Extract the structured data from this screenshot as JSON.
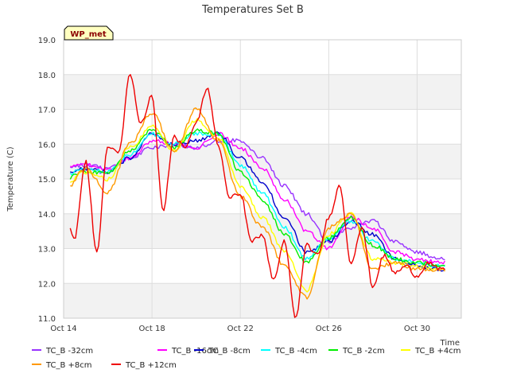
{
  "chart_data": {
    "type": "line",
    "title": "Temperatures Set B",
    "xlabel": "Time",
    "ylabel": "Temperature (C)",
    "annotation": "WP_met",
    "ylim": [
      11.0,
      19.0
    ],
    "yticks": [
      "11.0",
      "12.0",
      "13.0",
      "14.0",
      "15.0",
      "16.0",
      "17.0",
      "18.0",
      "19.0"
    ],
    "xlim": [
      "Oct 14",
      "Nov 1"
    ],
    "xticks": [
      "Oct 14",
      "Oct 18",
      "Oct 22",
      "Oct 26",
      "Oct 30"
    ],
    "grid": true,
    "legend_position": "bottom",
    "colors": {
      "band": "#f2f2f2",
      "grid": "#dddddd",
      "annotation_bg": "#ffffc0",
      "annotation_text": "#8b0000"
    },
    "series": [
      {
        "name": "TC_B -32cm",
        "color": "#9933ff",
        "x": [
          "Oct 14",
          "Oct 15",
          "Oct 16",
          "Oct 17",
          "Oct 18",
          "Oct 19",
          "Oct 20",
          "Oct 21",
          "Oct 22",
          "Oct 23",
          "Oct 24",
          "Oct 25",
          "Oct 26",
          "Oct 27",
          "Oct 28",
          "Oct 29",
          "Oct 30",
          "Oct 31"
        ],
        "y": [
          15.3,
          15.4,
          15.3,
          15.6,
          15.9,
          16.0,
          15.9,
          16.1,
          16.1,
          15.6,
          14.8,
          14.0,
          13.2,
          13.6,
          13.8,
          13.2,
          12.9,
          12.7
        ]
      },
      {
        "name": "TC_B -16cm",
        "color": "#ff00ff",
        "x": [
          "Oct 14",
          "Oct 15",
          "Oct 16",
          "Oct 17",
          "Oct 18",
          "Oct 19",
          "Oct 20",
          "Oct 21",
          "Oct 22",
          "Oct 23",
          "Oct 24",
          "Oct 25",
          "Oct 26",
          "Oct 27",
          "Oct 28",
          "Oct 29",
          "Oct 30",
          "Oct 31"
        ],
        "y": [
          15.3,
          15.4,
          15.3,
          15.6,
          16.1,
          16.0,
          15.9,
          16.3,
          15.9,
          15.3,
          14.4,
          13.5,
          13.0,
          13.9,
          13.6,
          12.9,
          12.7,
          12.6
        ]
      },
      {
        "name": "TC_B -8cm",
        "color": "#0000cc",
        "x": [
          "Oct 14",
          "Oct 15",
          "Oct 16",
          "Oct 17",
          "Oct 18",
          "Oct 19",
          "Oct 20",
          "Oct 21",
          "Oct 22",
          "Oct 23",
          "Oct 24",
          "Oct 25",
          "Oct 26",
          "Oct 27",
          "Oct 28",
          "Oct 29",
          "Oct 30",
          "Oct 31"
        ],
        "y": [
          15.1,
          15.3,
          15.2,
          15.6,
          16.3,
          16.0,
          16.1,
          16.3,
          15.6,
          14.9,
          13.9,
          12.9,
          13.2,
          13.8,
          13.4,
          12.7,
          12.5,
          12.4
        ]
      },
      {
        "name": "TC_B -4cm",
        "color": "#00ffff",
        "x": [
          "Oct 14",
          "Oct 15",
          "Oct 16",
          "Oct 17",
          "Oct 18",
          "Oct 19",
          "Oct 20",
          "Oct 21",
          "Oct 22",
          "Oct 23",
          "Oct 24",
          "Oct 25",
          "Oct 26",
          "Oct 27",
          "Oct 28",
          "Oct 29",
          "Oct 30",
          "Oct 31"
        ],
        "y": [
          15.1,
          15.3,
          15.2,
          15.7,
          16.3,
          16.0,
          16.3,
          16.3,
          15.4,
          14.6,
          13.6,
          12.7,
          13.3,
          13.8,
          13.2,
          12.7,
          12.6,
          12.5
        ]
      },
      {
        "name": "TC_B -2cm",
        "color": "#00ee00",
        "x": [
          "Oct 14",
          "Oct 15",
          "Oct 16",
          "Oct 17",
          "Oct 18",
          "Oct 19",
          "Oct 20",
          "Oct 21",
          "Oct 22",
          "Oct 23",
          "Oct 24",
          "Oct 25",
          "Oct 26",
          "Oct 27",
          "Oct 28",
          "Oct 29",
          "Oct 30",
          "Oct 31"
        ],
        "y": [
          15.0,
          15.2,
          15.2,
          15.8,
          16.4,
          15.9,
          16.4,
          16.3,
          15.2,
          14.4,
          13.4,
          12.6,
          13.3,
          13.9,
          13.1,
          12.7,
          12.6,
          12.5
        ]
      },
      {
        "name": "TC_B +4cm",
        "color": "#ffff00",
        "x": [
          "Oct 14",
          "Oct 15",
          "Oct 16",
          "Oct 17",
          "Oct 18",
          "Oct 19",
          "Oct 20",
          "Oct 21",
          "Oct 22",
          "Oct 23",
          "Oct 24",
          "Oct 25",
          "Oct 26",
          "Oct 27",
          "Oct 28",
          "Oct 29",
          "Oct 30",
          "Oct 31"
        ],
        "y": [
          14.8,
          15.2,
          15.0,
          15.9,
          16.5,
          15.8,
          16.7,
          16.2,
          14.8,
          13.9,
          12.9,
          11.8,
          13.4,
          14.0,
          12.7,
          12.6,
          12.5,
          12.4
        ]
      },
      {
        "name": "TC_B +8cm",
        "color": "#ff9900",
        "x": [
          "Oct 14",
          "Oct 15",
          "Oct 16",
          "Oct 17",
          "Oct 18",
          "Oct 19",
          "Oct 20",
          "Oct 21",
          "Oct 22",
          "Oct 23",
          "Oct 24",
          "Oct 25",
          "Oct 26",
          "Oct 27",
          "Oct 28",
          "Oct 29",
          "Oct 30",
          "Oct 31"
        ],
        "y": [
          14.6,
          15.3,
          14.6,
          16.0,
          16.9,
          15.8,
          17.0,
          16.1,
          14.5,
          13.6,
          12.5,
          11.6,
          13.6,
          14.0,
          12.4,
          12.6,
          12.4,
          12.4
        ]
      },
      {
        "name": "TC_B +12cm",
        "color": "#ee0000",
        "x": [
          "Oct 14",
          "Oct 14.5",
          "Oct 15",
          "Oct 15.5",
          "Oct 16",
          "Oct 16.5",
          "Oct 17",
          "Oct 17.5",
          "Oct 18",
          "Oct 18.5",
          "Oct 19",
          "Oct 19.5",
          "Oct 20",
          "Oct 20.5",
          "Oct 21",
          "Oct 21.5",
          "Oct 22",
          "Oct 22.5",
          "Oct 23",
          "Oct 23.5",
          "Oct 24",
          "Oct 24.5",
          "Oct 25",
          "Oct 25.5",
          "Oct 26",
          "Oct 26.5",
          "Oct 27",
          "Oct 27.5",
          "Oct 28",
          "Oct 28.5",
          "Oct 29",
          "Oct 29.5",
          "Oct 30",
          "Oct 30.5",
          "Oct 31"
        ],
        "y": [
          14.1,
          13.3,
          15.5,
          12.9,
          15.9,
          15.8,
          18.0,
          16.6,
          17.4,
          14.1,
          16.2,
          15.9,
          16.6,
          17.6,
          16.0,
          14.5,
          14.6,
          13.2,
          13.4,
          12.1,
          13.2,
          11.0,
          13.1,
          12.8,
          13.9,
          14.8,
          12.6,
          13.6,
          11.9,
          12.8,
          12.3,
          12.5,
          12.2,
          12.6,
          12.4
        ]
      }
    ]
  }
}
